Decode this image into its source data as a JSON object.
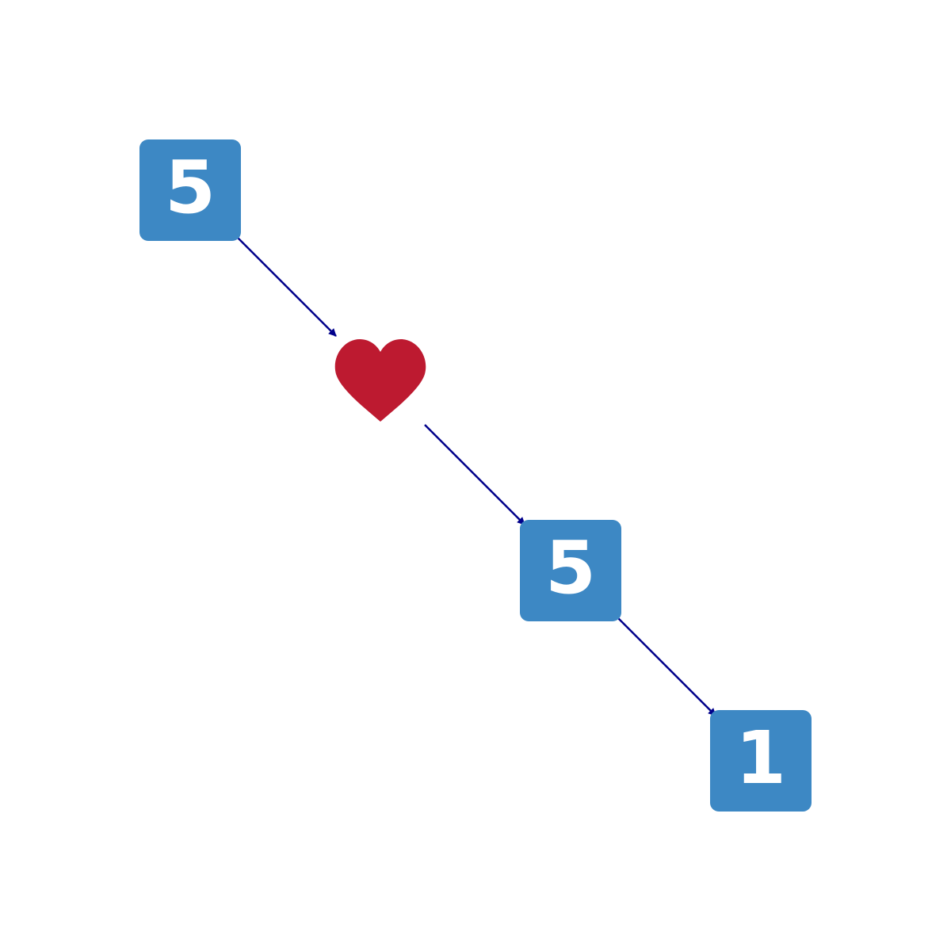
{
  "diagram": {
    "colors": {
      "tile_fill": "#3d88c4",
      "tile_text": "#ffffff",
      "heart": "#bd1a30",
      "arrow": "#00008b",
      "background": "#ffffff"
    },
    "nodes": [
      {
        "id": "node-0",
        "type": "number-tile",
        "label": "5"
      },
      {
        "id": "node-1",
        "type": "icon",
        "icon": "heart-icon"
      },
      {
        "id": "node-2",
        "type": "number-tile",
        "label": "5"
      },
      {
        "id": "node-3",
        "type": "number-tile",
        "label": "1"
      }
    ],
    "edges": [
      {
        "from": "node-0",
        "to": "node-1"
      },
      {
        "from": "node-1",
        "to": "node-2"
      },
      {
        "from": "node-2",
        "to": "node-3"
      }
    ]
  }
}
